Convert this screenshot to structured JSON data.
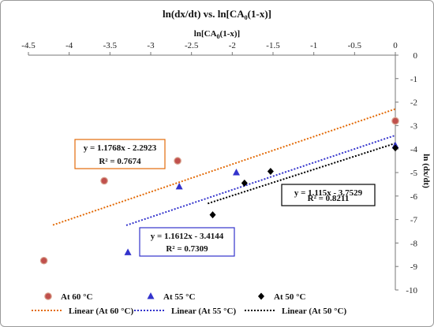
{
  "chart_data": {
    "type": "scatter",
    "title": "ln(dx/dt)  vs. ln[CA",
    "title_sub": "0",
    "title_tail": "(1-x)]",
    "xlabel": "ln[CA",
    "xlabel_sub": "0",
    "xlabel_tail": "(1-x)]",
    "ylabel": "ln (dx/dt)",
    "xlim": [
      -4.5,
      0
    ],
    "ylim": [
      -10,
      0
    ],
    "x_ticks": [
      "-4.5",
      "-4",
      "-3.5",
      "-3",
      "-2.5",
      "-2",
      "-1.5",
      "-1",
      "-0.5",
      "0"
    ],
    "x_tick_values": [
      -4.5,
      -4,
      -3.5,
      -3,
      -2.5,
      -2,
      -1.5,
      -1,
      -0.5,
      0
    ],
    "y_ticks": [
      "0",
      "-1",
      "-2",
      "-3",
      "-4",
      "-5",
      "-6",
      "-7",
      "-8",
      "-9",
      "-10"
    ],
    "y_tick_values": [
      0,
      -1,
      -2,
      -3,
      -4,
      -5,
      -6,
      -7,
      -8,
      -9,
      -10
    ],
    "series": [
      {
        "name": "At 60 °C",
        "marker": "circle",
        "color": "#c0504d",
        "points": [
          [
            -4.31,
            -8.75
          ],
          [
            -3.57,
            -5.35
          ],
          [
            -2.67,
            -4.5
          ],
          [
            0.0,
            -2.8
          ]
        ],
        "trend_name": "Linear (At 60 °C)",
        "trend_color": "#e36c0a",
        "slope": 1.1768,
        "intercept": -2.2923,
        "trend_range": [
          -4.2,
          0.0
        ],
        "equation": "y = 1.1768x - 2.2923",
        "r2": "R² = 0.7674",
        "label_border": "#e36c0a"
      },
      {
        "name": "At 55 °C",
        "marker": "triangle",
        "color": "#3333cc",
        "points": [
          [
            -3.28,
            -8.4
          ],
          [
            -2.65,
            -5.6
          ],
          [
            -1.95,
            -5.0
          ],
          [
            0.0,
            -3.85
          ]
        ],
        "trend_name": "Linear (At 55 °C)",
        "trend_color": "#3333cc",
        "slope": 1.1612,
        "intercept": -3.4144,
        "trend_range": [
          -3.3,
          0.0
        ],
        "equation": "y = 1.1612x - 3.4144",
        "r2": "R² = 0.7309",
        "label_border": "#3333cc"
      },
      {
        "name": "At 50 °C",
        "marker": "diamond",
        "color": "#000000",
        "points": [
          [
            -2.24,
            -6.8
          ],
          [
            -1.85,
            -5.45
          ],
          [
            -1.53,
            -4.95
          ],
          [
            0.0,
            -3.95
          ]
        ],
        "trend_name": "Linear (At 50 °C)",
        "trend_color": "#000000",
        "slope": 1.115,
        "intercept": -3.7529,
        "trend_range": [
          -2.3,
          0.0
        ],
        "equation": "y = 1.115x - 3.7529",
        "r2": "R² = 0.8211",
        "label_border": "#000000"
      }
    ]
  }
}
